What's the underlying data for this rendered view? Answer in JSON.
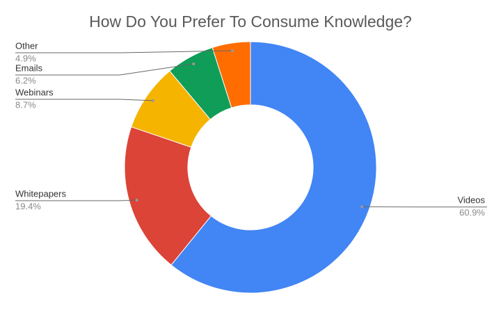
{
  "chart_data": {
    "type": "donut",
    "title": "How Do You Prefer To Consume Knowledge?",
    "categories": [
      "Videos",
      "Whitepapers",
      "Webinars",
      "Emails",
      "Other"
    ],
    "values": [
      60.9,
      19.4,
      8.7,
      6.2,
      4.9
    ],
    "value_labels": [
      "60.9%",
      "19.4%",
      "8.7%",
      "6.2%",
      "4.9%"
    ],
    "colors": [
      "#4285f4",
      "#db4437",
      "#f4b400",
      "#0f9d58",
      "#ff6d00"
    ]
  }
}
